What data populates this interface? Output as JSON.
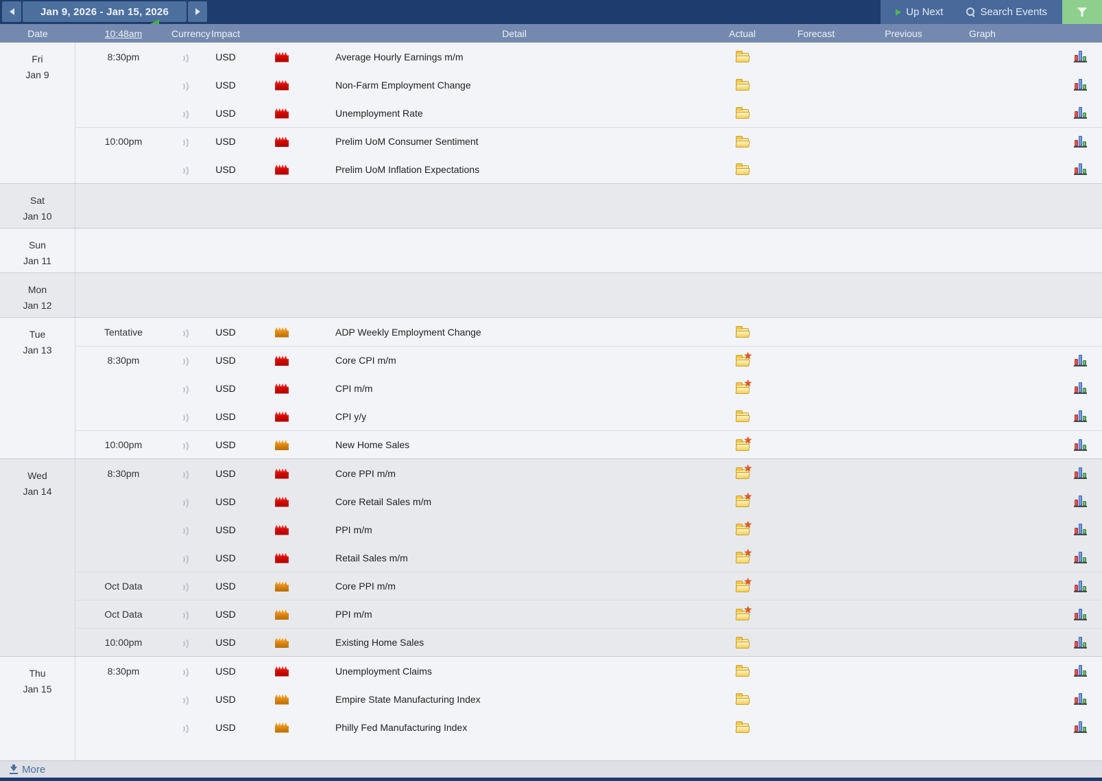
{
  "topbar": {
    "date_range": "Jan 9, 2026 - Jan 15, 2026",
    "up_next_label": "Up Next",
    "search_label": "Search Events"
  },
  "header": {
    "date": "Date",
    "time": "10:48am",
    "currency": "Currency",
    "impact": "Impact",
    "detail": "Detail",
    "actual": "Actual",
    "forecast": "Forecast",
    "previous": "Previous",
    "graph": "Graph"
  },
  "colors": {
    "impact_high": "#e20800",
    "impact_medium": "#f0920e",
    "accent_green": "#52b552",
    "filter_button_green": "#8ecf8e",
    "topbar_navy": "#1e3c6e",
    "header_blue": "#7389ae"
  },
  "calendar": {
    "days": [
      {
        "label": "Fri",
        "date": "Jan 9",
        "events": [
          {
            "time": "8:30pm",
            "new_group": true,
            "currency": "USD",
            "impact": "high",
            "name": "Average Hourly Earnings m/m",
            "detail": "folder",
            "graph": true,
            "actual": "",
            "forecast": "",
            "previous": ""
          },
          {
            "time": "",
            "new_group": false,
            "currency": "USD",
            "impact": "high",
            "name": "Non-Farm Employment Change",
            "detail": "folder",
            "graph": true,
            "actual": "",
            "forecast": "",
            "previous": ""
          },
          {
            "time": "",
            "new_group": false,
            "currency": "USD",
            "impact": "high",
            "name": "Unemployment Rate",
            "detail": "folder",
            "graph": true,
            "actual": "",
            "forecast": "",
            "previous": ""
          },
          {
            "time": "10:00pm",
            "new_group": true,
            "currency": "USD",
            "impact": "high",
            "name": "Prelim UoM Consumer Sentiment",
            "detail": "folder",
            "graph": true,
            "actual": "",
            "forecast": "",
            "previous": ""
          },
          {
            "time": "",
            "new_group": false,
            "currency": "USD",
            "impact": "high",
            "name": "Prelim UoM Inflation Expectations",
            "detail": "folder",
            "graph": true,
            "actual": "",
            "forecast": "",
            "previous": ""
          }
        ]
      },
      {
        "label": "Sat",
        "date": "Jan 10",
        "events": []
      },
      {
        "label": "Sun",
        "date": "Jan 11",
        "events": []
      },
      {
        "label": "Mon",
        "date": "Jan 12",
        "events": []
      },
      {
        "label": "Tue",
        "date": "Jan 13",
        "events": [
          {
            "time": "Tentative",
            "new_group": true,
            "currency": "USD",
            "impact": "medium",
            "name": "ADP Weekly Employment Change",
            "detail": "folder",
            "graph": false,
            "actual": "",
            "forecast": "",
            "previous": ""
          },
          {
            "time": "8:30pm",
            "new_group": true,
            "currency": "USD",
            "impact": "high",
            "name": "Core CPI m/m",
            "detail": "folder-star",
            "graph": true,
            "actual": "",
            "forecast": "",
            "previous": ""
          },
          {
            "time": "",
            "new_group": false,
            "currency": "USD",
            "impact": "high",
            "name": "CPI m/m",
            "detail": "folder-star",
            "graph": true,
            "actual": "",
            "forecast": "",
            "previous": ""
          },
          {
            "time": "",
            "new_group": false,
            "currency": "USD",
            "impact": "high",
            "name": "CPI y/y",
            "detail": "folder",
            "graph": true,
            "actual": "",
            "forecast": "",
            "previous": ""
          },
          {
            "time": "10:00pm",
            "new_group": true,
            "currency": "USD",
            "impact": "medium",
            "name": "New Home Sales",
            "detail": "folder-star",
            "graph": true,
            "actual": "",
            "forecast": "",
            "previous": ""
          }
        ]
      },
      {
        "label": "Wed",
        "date": "Jan 14",
        "events": [
          {
            "time": "8:30pm",
            "new_group": true,
            "currency": "USD",
            "impact": "high",
            "name": "Core PPI m/m",
            "detail": "folder-star",
            "graph": true,
            "actual": "",
            "forecast": "",
            "previous": ""
          },
          {
            "time": "",
            "new_group": false,
            "currency": "USD",
            "impact": "high",
            "name": "Core Retail Sales m/m",
            "detail": "folder-star",
            "graph": true,
            "actual": "",
            "forecast": "",
            "previous": ""
          },
          {
            "time": "",
            "new_group": false,
            "currency": "USD",
            "impact": "high",
            "name": "PPI m/m",
            "detail": "folder-star",
            "graph": true,
            "actual": "",
            "forecast": "",
            "previous": ""
          },
          {
            "time": "",
            "new_group": false,
            "currency": "USD",
            "impact": "high",
            "name": "Retail Sales m/m",
            "detail": "folder-star",
            "graph": true,
            "actual": "",
            "forecast": "",
            "previous": ""
          },
          {
            "time": "Oct Data",
            "new_group": true,
            "currency": "USD",
            "impact": "medium",
            "name": "Core PPI m/m",
            "detail": "folder-star",
            "graph": true,
            "actual": "",
            "forecast": "",
            "previous": ""
          },
          {
            "time": "Oct Data",
            "new_group": true,
            "currency": "USD",
            "impact": "medium",
            "name": "PPI m/m",
            "detail": "folder-star",
            "graph": true,
            "actual": "",
            "forecast": "",
            "previous": ""
          },
          {
            "time": "10:00pm",
            "new_group": true,
            "currency": "USD",
            "impact": "medium",
            "name": "Existing Home Sales",
            "detail": "folder",
            "graph": true,
            "actual": "",
            "forecast": "",
            "previous": ""
          }
        ]
      },
      {
        "label": "Thu",
        "date": "Jan 15",
        "events": [
          {
            "time": "8:30pm",
            "new_group": true,
            "currency": "USD",
            "impact": "high",
            "name": "Unemployment Claims",
            "detail": "folder",
            "graph": true,
            "actual": "",
            "forecast": "",
            "previous": ""
          },
          {
            "time": "",
            "new_group": false,
            "currency": "USD",
            "impact": "medium",
            "name": "Empire State Manufacturing Index",
            "detail": "folder",
            "graph": true,
            "actual": "",
            "forecast": "",
            "previous": ""
          },
          {
            "time": "",
            "new_group": false,
            "currency": "USD",
            "impact": "medium",
            "name": "Philly Fed Manufacturing Index",
            "detail": "folder",
            "graph": true,
            "actual": "",
            "forecast": "",
            "previous": ""
          }
        ]
      }
    ]
  },
  "footer": {
    "more_label": "More"
  }
}
